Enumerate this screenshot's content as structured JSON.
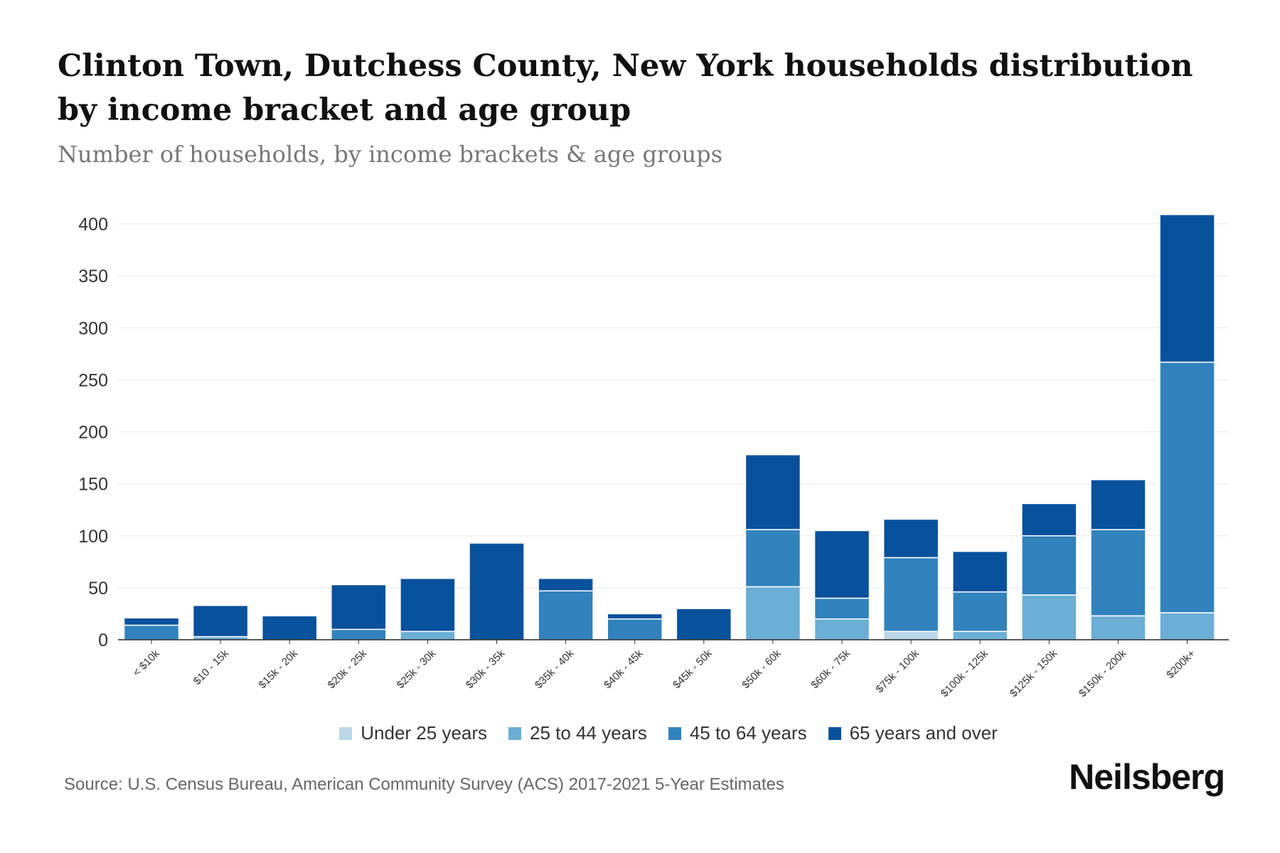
{
  "header": {
    "title": "Clinton Town, Dutchess County, New York households distribution by income bracket and age group",
    "subtitle": "Number of households, by income brackets & age groups"
  },
  "footer": {
    "source": "Source: U.S. Census Bureau, American Community Survey (ACS) 2017-2021 5-Year Estimates",
    "logo": "Neilsberg"
  },
  "chart_data": {
    "type": "bar",
    "stacked": true,
    "title": "Clinton Town, Dutchess County, New York households distribution by income bracket and age group",
    "subtitle": "Number of households, by income brackets & age groups",
    "xlabel": "",
    "ylabel": "",
    "ylim": [
      0,
      400
    ],
    "yticks": [
      0,
      50,
      100,
      150,
      200,
      250,
      300,
      350,
      400
    ],
    "grid": true,
    "legend_position": "bottom",
    "categories": [
      "< $10k",
      "$10 - 15k",
      "$15k - 20k",
      "$20k - 25k",
      "$25k - 30k",
      "$30k - 35k",
      "$35k - 40k",
      "$40k - 45k",
      "$45k - 50k",
      "$50k - 60k",
      "$60k - 75k",
      "$75k - 100k",
      "$100k - 125k",
      "$125k - 150k",
      "$150k - 200k",
      "$200k+"
    ],
    "series": [
      {
        "name": "Under 25 years",
        "color": "#b9d7e8",
        "values": [
          0,
          0,
          0,
          0,
          0,
          0,
          0,
          0,
          0,
          0,
          0,
          8,
          0,
          0,
          0,
          0
        ]
      },
      {
        "name": "25 to 44 years",
        "color": "#6baed6",
        "values": [
          0,
          3,
          0,
          0,
          8,
          0,
          0,
          0,
          0,
          51,
          20,
          0,
          8,
          43,
          23,
          26
        ]
      },
      {
        "name": "45 to 64 years",
        "color": "#3182bd",
        "values": [
          14,
          0,
          0,
          10,
          0,
          0,
          47,
          20,
          0,
          55,
          20,
          71,
          38,
          57,
          83,
          241
        ]
      },
      {
        "name": "65 years and over",
        "color": "#08519c",
        "values": [
          7,
          30,
          23,
          43,
          51,
          93,
          12,
          5,
          30,
          72,
          65,
          37,
          39,
          31,
          48,
          142
        ]
      }
    ]
  }
}
